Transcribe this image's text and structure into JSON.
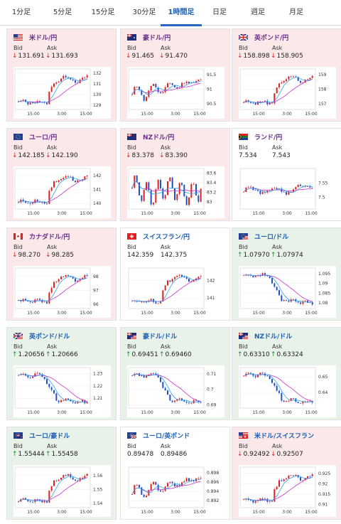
{
  "tabs": [
    {
      "label": "1分足",
      "active": false
    },
    {
      "label": "5分足",
      "active": false
    },
    {
      "label": "15分足",
      "active": false
    },
    {
      "label": "30分足",
      "active": false
    },
    {
      "label": "1時間足",
      "active": true
    },
    {
      "label": "日足",
      "active": false
    },
    {
      "label": "週足",
      "active": false
    },
    {
      "label": "月足",
      "active": false
    }
  ],
  "labels": {
    "bid": "Bid",
    "ask": "Ask"
  },
  "colors": {
    "up_bg": "#e8f2e8",
    "down_bg": "#fbe9e9",
    "neutral_bg": "#ffffff",
    "up_arrow": "#1a8c2a",
    "down_arrow": "#d22222",
    "pair_purple": "#6a2f8a",
    "pair_blue": "#1f5fb3",
    "tab_accent": "#2a66c4",
    "candle_up": "#e02020",
    "candle_down": "#2050c8",
    "ma_long": "#cc33cc",
    "ma_short": "#33a0e0"
  },
  "cards": [
    {
      "pair": "米ドル/円",
      "flag": "us",
      "direction": "down",
      "bid": "131.691",
      "ask": "131.693",
      "chart": {
        "x_ticks": [
          "15:00",
          "3:00",
          "15:00"
        ],
        "y_ticks": [
          "132",
          "131",
          "130",
          "129"
        ],
        "ylim": [
          128.6,
          132.4
        ],
        "trend": "up-right"
      }
    },
    {
      "pair": "豪ドル/円",
      "flag": "au",
      "direction": "down",
      "bid": "91.465",
      "ask": "91.470",
      "chart": {
        "x_ticks": [
          "15:00",
          "3:00",
          "15:00"
        ],
        "y_ticks": [
          "91.5",
          "91",
          "90.5"
        ],
        "ylim": [
          90.3,
          91.7
        ],
        "trend": "choppy-up"
      }
    },
    {
      "pair": "英ポンド/円",
      "flag": "gb",
      "direction": "down",
      "bid": "158.898",
      "ask": "158.905",
      "chart": {
        "x_ticks": [
          "15:00",
          "3:00",
          "15:00"
        ],
        "y_ticks": [
          "159",
          "158",
          "157"
        ],
        "ylim": [
          156.6,
          159.4
        ],
        "trend": "up-right"
      }
    },
    {
      "pair": "ユーロ/円",
      "flag": "eu",
      "direction": "down",
      "bid": "142.185",
      "ask": "142.190",
      "chart": {
        "x_ticks": [
          "15:00",
          "3:00",
          "15:00"
        ],
        "y_ticks": [
          "142",
          "141",
          "140"
        ],
        "ylim": [
          139.6,
          142.5
        ],
        "trend": "up-right"
      }
    },
    {
      "pair": "NZドル/円",
      "flag": "nz",
      "direction": "down",
      "bid": "83.378",
      "ask": "83.390",
      "chart": {
        "x_ticks": [
          "15:00",
          "3:00",
          "15:00"
        ],
        "y_ticks": [
          "83.6",
          "83.4",
          "83.2",
          "83"
        ],
        "ylim": [
          82.85,
          83.7
        ],
        "trend": "choppy"
      }
    },
    {
      "pair": "ランド/円",
      "flag": "za",
      "direction": "none",
      "bid": "7.534",
      "ask": "7.543",
      "chart": {
        "x_ticks": [
          "15:00",
          "3:00",
          "15:00"
        ],
        "y_ticks": [
          "7.55",
          "7.5"
        ],
        "ylim": [
          7.46,
          7.6
        ],
        "trend": "flat-up"
      }
    },
    {
      "pair": "カナダドル/円",
      "flag": "ca",
      "direction": "down",
      "bid": "98.270",
      "ask": "98.285",
      "chart": {
        "x_ticks": [
          "15:00",
          "3:00",
          "15:00"
        ],
        "y_ticks": [
          "98",
          "97",
          "96"
        ],
        "ylim": [
          95.7,
          98.6
        ],
        "trend": "up-right"
      }
    },
    {
      "pair": "スイスフラン/円",
      "flag": "ch",
      "direction": "none",
      "bid": "142.359",
      "ask": "142.375",
      "chart": {
        "x_ticks": [
          "15:00",
          "3:00",
          "15:00"
        ],
        "y_ticks": [
          "142",
          "141"
        ],
        "ylim": [
          140.4,
          142.7
        ],
        "trend": "up-right"
      }
    },
    {
      "pair": "ユーロ/ドル",
      "flag": "eu-us",
      "direction": "up",
      "bid": "1.07970",
      "ask": "1.07974",
      "chart": {
        "x_ticks": [
          "15:00",
          "3:00",
          "15:00"
        ],
        "y_ticks": [
          "1.095",
          "1.09",
          "1.085",
          "1.08"
        ],
        "ylim": [
          1.077,
          1.098
        ],
        "trend": "down-right"
      }
    },
    {
      "pair": "英ポンド/ドル",
      "flag": "gb-us",
      "direction": "up",
      "bid": "1.20656",
      "ask": "1.20666",
      "chart": {
        "x_ticks": [
          "15:00",
          "3:00",
          "15:00"
        ],
        "y_ticks": [
          "1.23",
          "1.22",
          "1.21"
        ],
        "ylim": [
          1.202,
          1.235
        ],
        "trend": "down-right"
      }
    },
    {
      "pair": "豪ドル/ドル",
      "flag": "au-us",
      "direction": "up",
      "bid": "0.69451",
      "ask": "0.69460",
      "chart": {
        "x_ticks": [
          "15:00",
          "3:00",
          "15:00"
        ],
        "y_ticks": [
          "0.71",
          "0.7",
          "0.69"
        ],
        "ylim": [
          0.688,
          0.714
        ],
        "trend": "down-right"
      }
    },
    {
      "pair": "NZドル/ドル",
      "flag": "nz-us",
      "direction": "up",
      "bid": "0.63310",
      "ask": "0.63324",
      "chart": {
        "x_ticks": [
          "15:00",
          "3:00",
          "15:00"
        ],
        "y_ticks": [
          "0.65",
          "0.64"
        ],
        "ylim": [
          0.63,
          0.656
        ],
        "trend": "down-right"
      }
    },
    {
      "pair": "ユーロ/豪ドル",
      "flag": "eu-au",
      "direction": "up",
      "bid": "1.55444",
      "ask": "1.55458",
      "chart": {
        "x_ticks": [
          "15:00",
          "3:00",
          "15:00"
        ],
        "y_ticks": [
          "1.56",
          "1.55",
          "1.54"
        ],
        "ylim": [
          1.537,
          1.566
        ],
        "trend": "up-right"
      }
    },
    {
      "pair": "ユーロ/英ポンド",
      "flag": "eu-gb",
      "direction": "none",
      "bid": "0.89478",
      "ask": "0.89486",
      "chart": {
        "x_ticks": [
          "15:00",
          "3:00",
          "15:00"
        ],
        "y_ticks": [
          "0.898",
          "0.896",
          "0.894",
          "0.892"
        ],
        "ylim": [
          0.8905,
          0.8992
        ],
        "trend": "choppy-up"
      }
    },
    {
      "pair": "米ドル/スイスフラン",
      "flag": "us-ch",
      "direction": "down",
      "bid": "0.92492",
      "ask": "0.92507",
      "chart": {
        "x_ticks": [
          "15:00",
          "3:00",
          "15:00"
        ],
        "y_ticks": [
          "0.925",
          "0.92",
          "0.915",
          "0.91"
        ],
        "ylim": [
          0.9085,
          0.928
        ],
        "trend": "up-right"
      }
    }
  ]
}
